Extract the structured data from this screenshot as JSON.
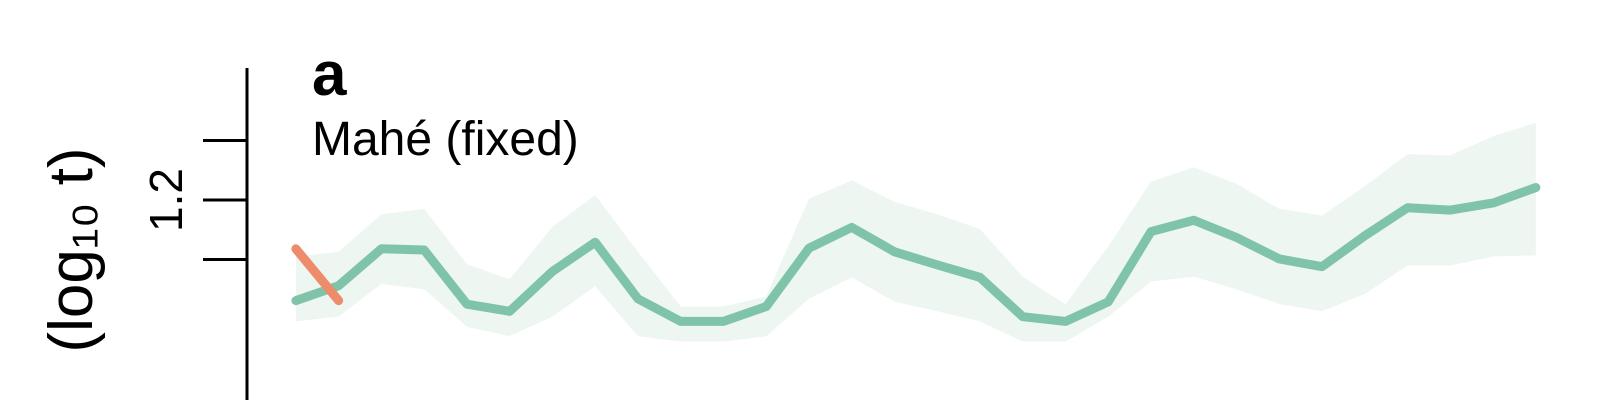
{
  "chart_data": {
    "type": "line",
    "panel_label": "a",
    "title": "Mahé (fixed)",
    "ylabel": "(log₁₀ t)",
    "x": [
      0,
      1,
      2,
      3,
      4,
      5,
      6,
      7,
      8,
      9,
      10,
      11,
      12,
      13,
      14,
      15,
      16,
      17,
      18,
      19,
      20,
      21,
      22,
      23,
      24,
      25,
      26,
      27,
      28,
      29
    ],
    "xlim": [
      -6.92,
      30.5
    ],
    "ylim": [
      0.864,
      1.536
    ],
    "yticks": [
      1.2
    ],
    "yminorticks": [
      1.1,
      1.3
    ],
    "series": [
      {
        "color": "#7fc4a8",
        "band_color": "#eef6f2",
        "values": [
          1.031,
          1.056,
          1.118,
          1.116,
          1.025,
          1.013,
          1.08,
          1.129,
          1.034,
          0.996,
          0.996,
          1.021,
          1.119,
          1.154,
          1.113,
          1.091,
          1.07,
          1.004,
          0.996,
          1.029,
          1.147,
          1.166,
          1.137,
          1.101,
          1.088,
          1.14,
          1.187,
          1.183,
          1.195,
          1.221
        ],
        "upper": [
          1.105,
          1.113,
          1.176,
          1.185,
          1.092,
          1.067,
          1.155,
          1.208,
          1.113,
          1.021,
          1.021,
          1.038,
          1.202,
          1.233,
          1.197,
          1.176,
          1.151,
          1.071,
          1.025,
          1.122,
          1.231,
          1.255,
          1.227,
          1.185,
          1.174,
          1.223,
          1.277,
          1.275,
          1.307,
          1.33
        ],
        "lower": [
          0.996,
          1.004,
          1.059,
          1.05,
          0.987,
          0.971,
          1.004,
          1.055,
          0.971,
          0.962,
          0.962,
          0.971,
          1.034,
          1.07,
          1.029,
          1.013,
          0.996,
          0.962,
          0.962,
          1.004,
          1.063,
          1.071,
          1.05,
          1.025,
          1.013,
          1.042,
          1.09,
          1.09,
          1.105,
          1.107
        ]
      },
      {
        "color": "#ec8c6a",
        "values": [
          1.118,
          1.031,
          null,
          null,
          null,
          null,
          null,
          null,
          null,
          null,
          null,
          null,
          null,
          null,
          null,
          null,
          null,
          null,
          null,
          null,
          null,
          null,
          null,
          null,
          null,
          null,
          null,
          null,
          null,
          null
        ]
      }
    ]
  }
}
